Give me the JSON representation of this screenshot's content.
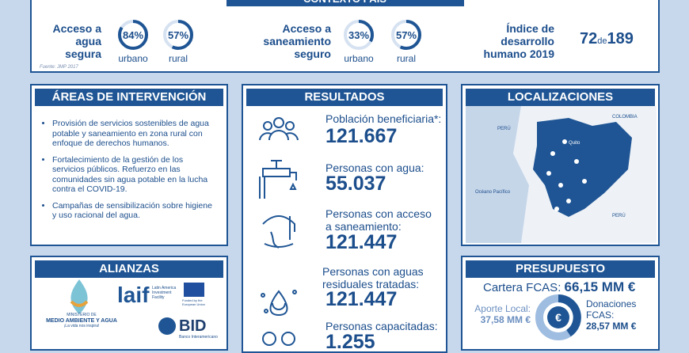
{
  "context": {
    "title": "CONTEXTO PAÍS",
    "source": "Fuente: JMP 2017",
    "water": {
      "label": "Acceso a agua segura",
      "urban": {
        "value": 84,
        "label": "84%"
      },
      "rural": {
        "value": 57,
        "label": "57%"
      },
      "urban_label": "urbano",
      "rural_label": "rural"
    },
    "sanitation": {
      "label": "Acceso a saneamiento seguro",
      "urban": {
        "value": 33,
        "label": "33%"
      },
      "rural": {
        "value": 57,
        "label": "57%"
      },
      "urban_label": "urbano",
      "rural_label": "rural"
    },
    "hdi": {
      "label": "Índice de desarrollo humano 2019",
      "rank": "72",
      "of": "de",
      "total": "189"
    }
  },
  "areas": {
    "title": "ÁREAS DE INTERVENCIÓN",
    "items": [
      "Provisión de servicios sostenibles de agua potable y saneamiento en zona rural con enfoque de derechos humanos.",
      "Fortalecimiento de la gestión de los servicios públicos. Refuerzo en las comunidades sin agua potable en la lucha contra el COVID-19.",
      "Campañas de sensibilización sobre higiene y uso racional del agua."
    ]
  },
  "results": {
    "title": "RESULTADOS",
    "items": [
      {
        "label": "Población beneficiaria*:",
        "value": "121.667"
      },
      {
        "label": "Personas con agua:",
        "value": "55.037"
      },
      {
        "label": "Personas con acceso a saneamiento:",
        "value": "121.447"
      },
      {
        "label": "Personas con aguas residuales tratadas:",
        "value": "121.447"
      },
      {
        "label": "Personas capacitadas:",
        "value": "1.255"
      }
    ]
  },
  "locations": {
    "title": "LOCALIZACIONES",
    "labels": [
      "PERÚ",
      "COLOMBIA",
      "Quito",
      "Océano Pacífico",
      "PERÚ"
    ]
  },
  "alliances": {
    "title": "ALIANZAS",
    "ministry": [
      "MINISTERIO DE",
      "MEDIO AMBIENTE Y AGUA",
      "¡La vida nos inspira!"
    ],
    "laif": [
      "laif",
      "Latin America Investment Facility",
      "Funded by the European Union"
    ],
    "bid": [
      "BID",
      "Banco Interamericano"
    ]
  },
  "budget": {
    "title": "PRESUPUESTO",
    "portfolio_label": "Cartera FCAS:",
    "portfolio": "66,15 MM €",
    "local_label": "Aporte Local:",
    "local": "37,58 MM €",
    "donation_label": "Donaciones FCAS:",
    "donation": "28,57 MM €",
    "symbol": "€"
  }
}
